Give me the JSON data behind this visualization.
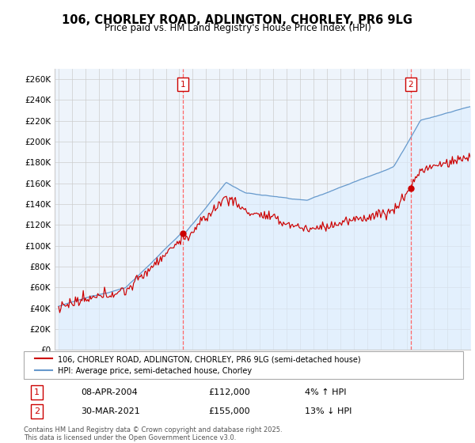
{
  "title": "106, CHORLEY ROAD, ADLINGTON, CHORLEY, PR6 9LG",
  "subtitle": "Price paid vs. HM Land Registry's House Price Index (HPI)",
  "ylabel_ticks": [
    "£0",
    "£20K",
    "£40K",
    "£60K",
    "£80K",
    "£100K",
    "£120K",
    "£140K",
    "£160K",
    "£180K",
    "£200K",
    "£220K",
    "£240K",
    "£260K"
  ],
  "ytick_values": [
    0,
    20000,
    40000,
    60000,
    80000,
    100000,
    120000,
    140000,
    160000,
    180000,
    200000,
    220000,
    240000,
    260000
  ],
  "ylim": [
    0,
    270000
  ],
  "xlim_start": 1994.7,
  "xlim_end": 2025.7,
  "red_line_label": "106, CHORLEY ROAD, ADLINGTON, CHORLEY, PR6 9LG (semi-detached house)",
  "blue_line_label": "HPI: Average price, semi-detached house, Chorley",
  "sale1_x": 2004.27,
  "sale1_y": 112000,
  "sale1_date": "08-APR-2004",
  "sale1_price": 112000,
  "sale1_pct": "4%",
  "sale1_dir": "↑",
  "sale2_x": 2021.25,
  "sale2_y": 155000,
  "sale2_date": "30-MAR-2021",
  "sale2_price": 155000,
  "sale2_pct": "13%",
  "sale2_dir": "↓",
  "footer": "Contains HM Land Registry data © Crown copyright and database right 2025.\nThis data is licensed under the Open Government Licence v3.0.",
  "red_color": "#cc0000",
  "blue_color": "#6699cc",
  "blue_fill": "#ddeeff",
  "vline_color": "#ff6666",
  "grid_color": "#cccccc",
  "bg_color": "#ffffff",
  "plot_bg": "#eef4fb"
}
